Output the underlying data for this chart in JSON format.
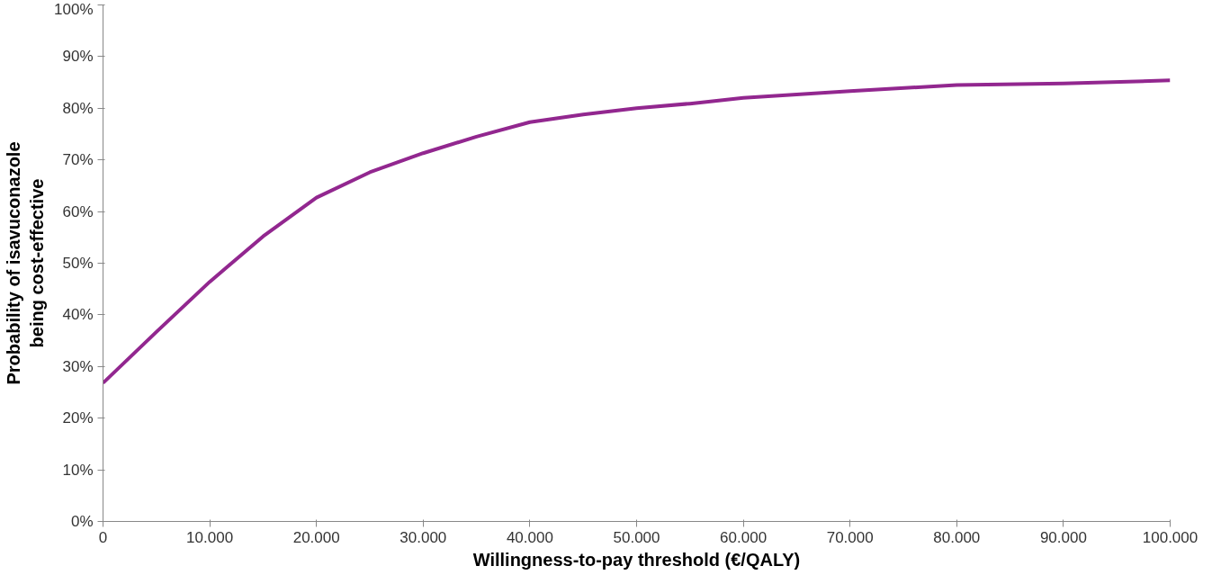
{
  "chart_data": {
    "type": "line",
    "xlabel": "Willingness-to-pay threshold (€/QALY)",
    "ylabel": "Probability of isavuconazole\nbeing cost-effective",
    "x": [
      0,
      5000,
      10000,
      15000,
      20000,
      25000,
      30000,
      35000,
      40000,
      45000,
      50000,
      55000,
      60000,
      70000,
      80000,
      90000,
      100000
    ],
    "series": [
      {
        "color": "#92278f",
        "values": [
          26.8,
          36.7,
          46.4,
          55.2,
          62.7,
          67.6,
          71.3,
          74.5,
          77.3,
          78.8,
          80.0,
          80.9,
          82.0,
          83.3,
          84.5,
          84.8,
          85.4
        ]
      }
    ],
    "xlim": [
      0,
      100000
    ],
    "xticks": [
      0,
      {
        "value": 10000,
        "label": "10.000"
      },
      {
        "value": 20000,
        "label": "20.000"
      },
      {
        "value": 30000,
        "label": "30.000"
      },
      {
        "value": 40000,
        "label": "40.000"
      },
      {
        "value": 50000,
        "label": "50.000"
      },
      {
        "value": 60000,
        "label": "60.000"
      },
      {
        "value": 70000,
        "label": "70.000"
      },
      {
        "value": 80000,
        "label": "80.000"
      },
      {
        "value": 90000,
        "label": "90.000"
      },
      {
        "value": 100000,
        "label": "100.000"
      }
    ],
    "ylim": [
      0,
      100
    ],
    "yticks": [
      {
        "value": 0,
        "label": "0%"
      },
      {
        "value": 10,
        "label": "10%"
      },
      {
        "value": 20,
        "label": "20%"
      },
      {
        "value": 30,
        "label": "30%"
      },
      {
        "value": 40,
        "label": "40%"
      },
      {
        "value": 50,
        "label": "50%"
      },
      {
        "value": 60,
        "label": "60%"
      },
      {
        "value": 70,
        "label": "70%"
      },
      {
        "value": 80,
        "label": "80%"
      },
      {
        "value": 90,
        "label": "90%"
      },
      {
        "value": 100,
        "label": "100%"
      }
    ],
    "line_style": "solid"
  }
}
